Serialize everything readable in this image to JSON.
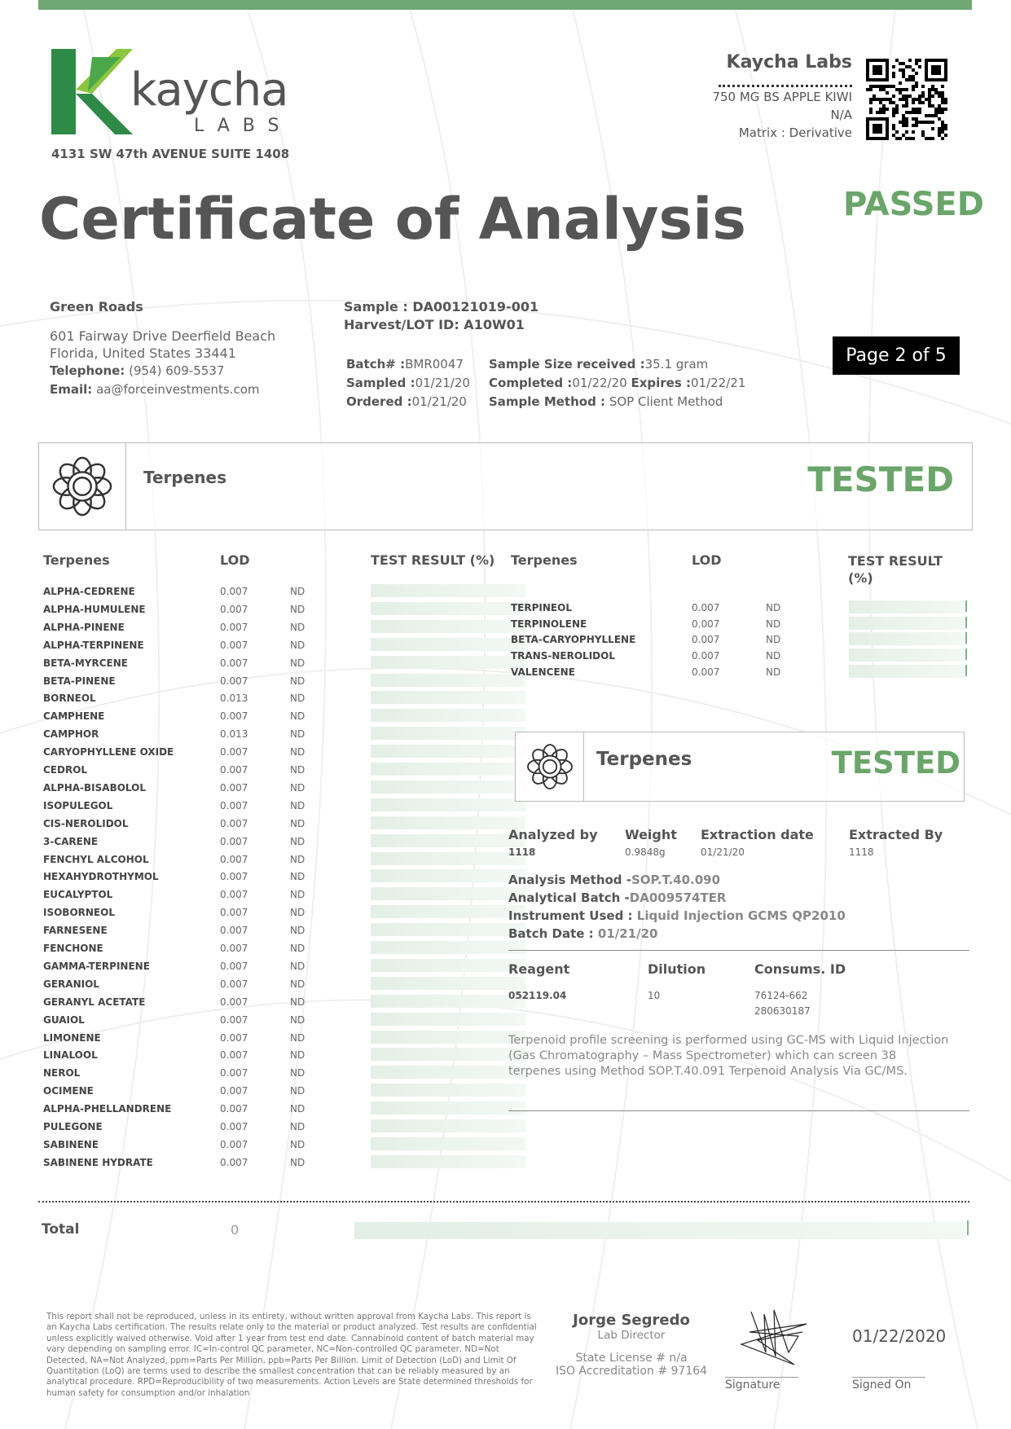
{
  "header": {
    "logo_word": "kaycha",
    "logo_sub": "LABS",
    "lab_address": "4131 SW 47th AVENUE SUITE 1408",
    "lab_name": "Kaycha Labs",
    "product_name": "750 MG BS APPLE KIWI",
    "product_na": "N/A",
    "matrix": "Matrix : Derivative",
    "title": "Certificate of Analysis",
    "status": "PASSED",
    "accent_color": "#6aa56a"
  },
  "client": {
    "name": "Green Roads",
    "address_line1": "601 Fairway Drive Deerfield Beach",
    "address_line2": "Florida, United States 33441",
    "telephone_label": "Telephone:",
    "telephone": "(954) 609-5537",
    "email_label": "Email:",
    "email": "aa@forceinvestments.com"
  },
  "sample": {
    "sample_label": "Sample :",
    "sample_id": "DA00121019-001",
    "lot_label": "Harvest/LOT ID:",
    "lot_id": "A10W01",
    "batch_label": "Batch# :",
    "batch": "BMR0047",
    "sampled_label": "Sampled :",
    "sampled": "01/21/20",
    "ordered_label": "Ordered :",
    "ordered": "01/21/20",
    "size_label": "Sample Size received :",
    "size": "35.1 gram",
    "completed_label": "Completed :",
    "completed": "01/22/20",
    "expires_label": "Expires :",
    "expires": "01/22/21",
    "method_label": "Sample Method :",
    "method": "SOP Client Method"
  },
  "page_indicator": "Page 2 of 5",
  "section": {
    "title": "Terpenes",
    "status": "TESTED",
    "icon": "flower-icon"
  },
  "table": {
    "headers": {
      "name": "Terpenes",
      "lod": "LOD",
      "result": "TEST RESULT (%)",
      "result_line1": "TEST RESULT",
      "result_line2": "(%)"
    },
    "left_rows": [
      {
        "name": "ALPHA-CEDRENE",
        "lod": "0.007",
        "result": "ND"
      },
      {
        "name": "ALPHA-HUMULENE",
        "lod": "0.007",
        "result": "ND"
      },
      {
        "name": "ALPHA-PINENE",
        "lod": "0.007",
        "result": "ND"
      },
      {
        "name": "ALPHA-TERPINENE",
        "lod": "0.007",
        "result": "ND"
      },
      {
        "name": "BETA-MYRCENE",
        "lod": "0.007",
        "result": "ND"
      },
      {
        "name": "BETA-PINENE",
        "lod": "0.007",
        "result": "ND"
      },
      {
        "name": "BORNEOL",
        "lod": "0.013",
        "result": "ND"
      },
      {
        "name": "CAMPHENE",
        "lod": "0.007",
        "result": "ND"
      },
      {
        "name": "CAMPHOR",
        "lod": "0.013",
        "result": "ND"
      },
      {
        "name": "CARYOPHYLLENE OXIDE",
        "lod": "0.007",
        "result": "ND"
      },
      {
        "name": "CEDROL",
        "lod": "0.007",
        "result": "ND"
      },
      {
        "name": "ALPHA-BISABOLOL",
        "lod": "0.007",
        "result": "ND"
      },
      {
        "name": "ISOPULEGOL",
        "lod": "0.007",
        "result": "ND"
      },
      {
        "name": "CIS-NEROLIDOL",
        "lod": "0.007",
        "result": "ND"
      },
      {
        "name": "3-CARENE",
        "lod": "0.007",
        "result": "ND"
      },
      {
        "name": "FENCHYL ALCOHOL",
        "lod": "0.007",
        "result": "ND"
      },
      {
        "name": "HEXAHYDROTHYMOL",
        "lod": "0.007",
        "result": "ND"
      },
      {
        "name": "EUCALYPTOL",
        "lod": "0.007",
        "result": "ND"
      },
      {
        "name": "ISOBORNEOL",
        "lod": "0.007",
        "result": "ND"
      },
      {
        "name": "FARNESENE",
        "lod": "0.007",
        "result": "ND"
      },
      {
        "name": "FENCHONE",
        "lod": "0.007",
        "result": "ND"
      },
      {
        "name": "GAMMA-TERPINENE",
        "lod": "0.007",
        "result": "ND"
      },
      {
        "name": "GERANIOL",
        "lod": "0.007",
        "result": "ND"
      },
      {
        "name": "GERANYL ACETATE",
        "lod": "0.007",
        "result": "ND"
      },
      {
        "name": "GUAIOL",
        "lod": "0.007",
        "result": "ND"
      },
      {
        "name": "LIMONENE",
        "lod": "0.007",
        "result": "ND"
      },
      {
        "name": "LINALOOL",
        "lod": "0.007",
        "result": "ND"
      },
      {
        "name": "NEROL",
        "lod": "0.007",
        "result": "ND"
      },
      {
        "name": "OCIMENE",
        "lod": "0.007",
        "result": "ND"
      },
      {
        "name": "ALPHA-PHELLANDRENE",
        "lod": "0.007",
        "result": "ND"
      },
      {
        "name": "PULEGONE",
        "lod": "0.007",
        "result": "ND"
      },
      {
        "name": "SABINENE",
        "lod": "0.007",
        "result": "ND"
      },
      {
        "name": "SABINENE HYDRATE",
        "lod": "0.007",
        "result": "ND"
      }
    ],
    "right_rows": [
      {
        "name": "TERPINEOL",
        "lod": "0.007",
        "result": "ND"
      },
      {
        "name": "TERPINOLENE",
        "lod": "0.007",
        "result": "ND"
      },
      {
        "name": "BETA-CARYOPHYLLENE",
        "lod": "0.007",
        "result": "ND"
      },
      {
        "name": "TRANS-NEROLIDOL",
        "lod": "0.007",
        "result": "ND"
      },
      {
        "name": "VALENCENE",
        "lod": "0.007",
        "result": "ND"
      }
    ],
    "total_label": "Total",
    "total_value": "0"
  },
  "analysis": {
    "analyzed_by_label": "Analyzed by",
    "analyzed_by": "1118",
    "weight_label": "Weight",
    "weight": "0.9848g",
    "extraction_date_label": "Extraction date",
    "extraction_date": "01/21/20",
    "extracted_by_label": "Extracted By",
    "extracted_by": "1118",
    "method_label": "Analysis Method -",
    "method": "SOP.T.40.090",
    "batch_label": "Analytical Batch -",
    "batch": "DA009574TER",
    "instrument_label": "Instrument Used :",
    "instrument": "Liquid Injection GCMS QP2010",
    "batch_date_label": "Batch Date :",
    "batch_date": "01/21/20",
    "reagent_label": "Reagent",
    "reagent": "052119.04",
    "dilution_label": "Dilution",
    "dilution": "10",
    "consums_label": "Consums. ID",
    "consums_1": "76124-662",
    "consums_2": "280630187",
    "description": "Terpenoid profile screening is performed using GC-MS with Liquid Injection (Gas Chromatography – Mass Spectrometer) which can screen 38 terpenes using Method SOP.T.40.091 Terpenoid Analysis Via GC/MS."
  },
  "footer": {
    "disclaimer": "This report shall not be reproduced, unless in its entirety, without written approval from Kaycha Labs. This report is an Kaycha Labs certification. The results relate only to the material or product analyzed. Test results are confidential unless explicitly waived otherwise. Void after 1 year from test end date. Cannabinoid content of batch material may vary depending on sampling error. IC=In-control QC parameter, NC=Non-controlled QC parameter, ND=Not Detected, NA=Not Analyzed, ppm=Parts Per Million, ppb=Parts Per Billion. Limit of Detection (LoD) and Limit Of Quantitation (LoQ) are terms used to describe the smallest concentration that can be reliably measured by an analytical procedure. RPD=Reproducibility of two measurements. Action Levels are State determined thresholds for human safety for consumption and/or inhalation",
    "director_name": "Jorge Segredo",
    "director_title": "Lab Director",
    "state_license": "State License # n/a",
    "iso": "ISO Accreditation # 97164",
    "signature_label": "Signature",
    "signed_on_label": "Signed On",
    "signed_date": "01/22/2020"
  }
}
